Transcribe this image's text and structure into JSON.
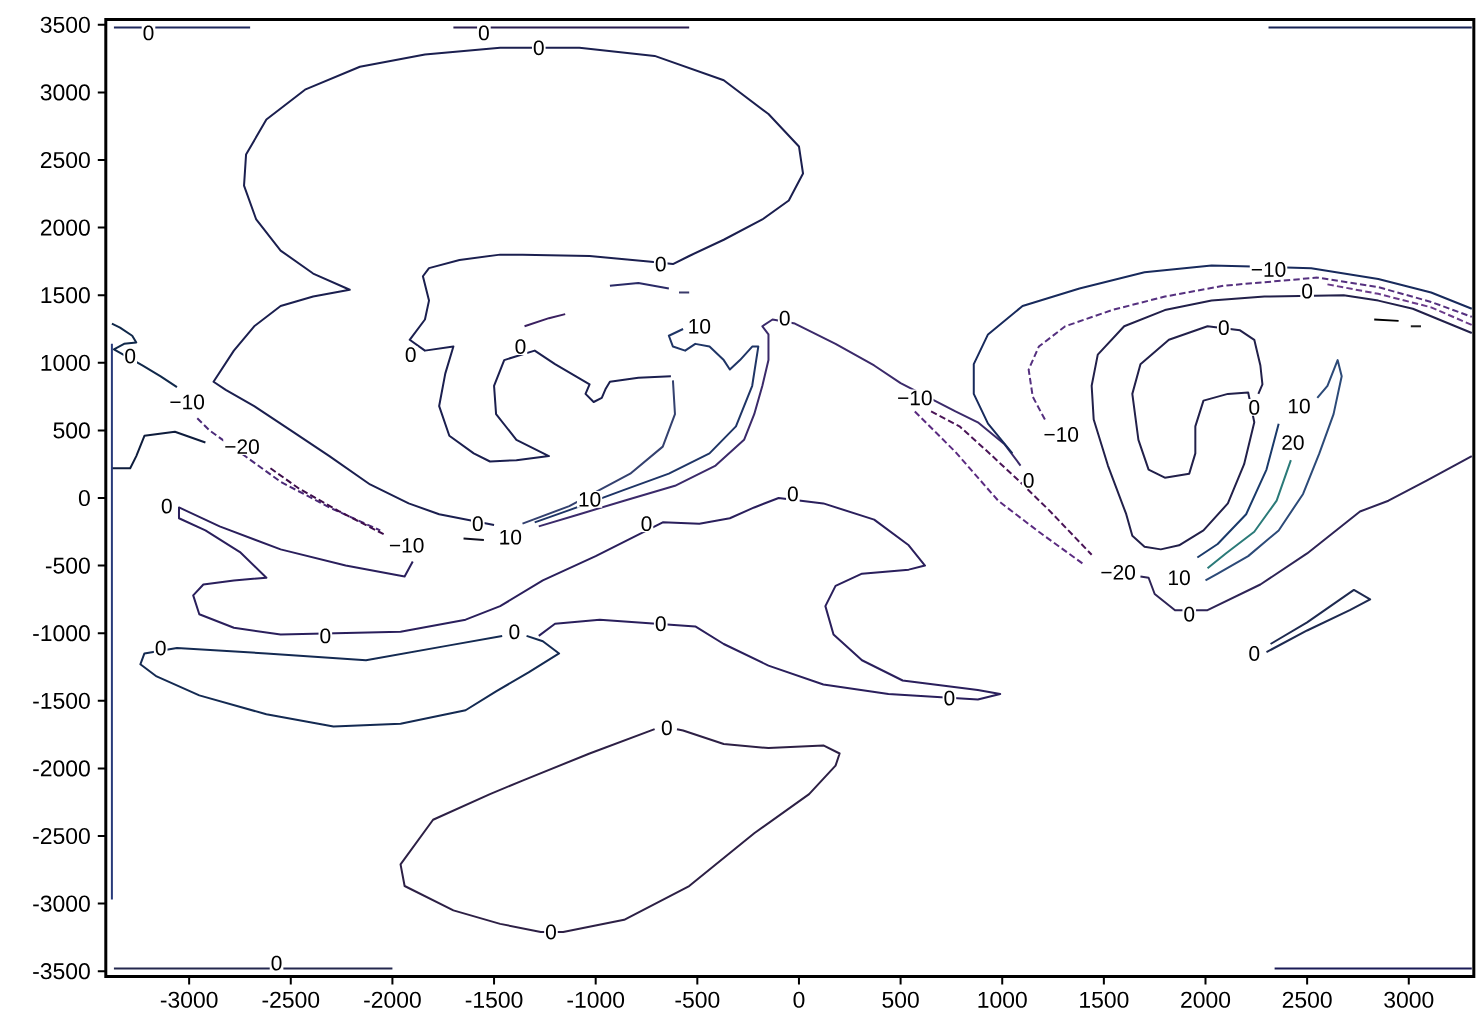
{
  "chart_data": {
    "type": "line",
    "marker": "none",
    "line_style": "solid",
    "xlim": [
      -3410,
      3320
    ],
    "ylim": [
      -3540,
      3540
    ],
    "xticks": [
      -3000,
      -2500,
      -2000,
      -1500,
      -1000,
      -500,
      0,
      500,
      1000,
      1500,
      2000,
      2500,
      3000
    ],
    "yticks": [
      -3500,
      -3000,
      -2500,
      -2000,
      -1500,
      -1000,
      -500,
      0,
      500,
      1000,
      1500,
      2000,
      2500,
      3000,
      3500
    ],
    "series": [
      {
        "color": "#1b1f4f",
        "x": [
          -630,
          -790,
          -930,
          -950,
          -970,
          -1010,
          -1050,
          -1030,
          -1200,
          -1300,
          -1450,
          -1500,
          -1490,
          -1390,
          -1230,
          -1390,
          -1520,
          -1600,
          -1720,
          -1770,
          -1740,
          -1700,
          -1840,
          -1915,
          -1840,
          -1820,
          -1850,
          -1820,
          -1670,
          -1470,
          -1360,
          -1030,
          -740,
          -620,
          -540,
          -370,
          -180,
          -50,
          20,
          0,
          -150,
          -370,
          -710,
          -1080,
          -1470,
          -1840,
          -2160,
          -2430,
          -2620,
          -2720,
          -2730,
          -2670,
          -2550,
          -2390,
          -2210,
          -2390,
          -2550,
          -2680,
          -2780,
          -2880,
          -2820,
          -2680,
          -2500,
          -2310,
          -2110,
          -1920,
          -1770,
          -1500
        ],
        "values": [
          900,
          890,
          860,
          810,
          740,
          710,
          770,
          840,
          990,
          1090,
          1020,
          830,
          620,
          430,
          310,
          280,
          270,
          330,
          460,
          680,
          920,
          1120,
          1090,
          1170,
          1320,
          1460,
          1640,
          1700,
          1760,
          1800,
          1800,
          1790,
          1750,
          1730,
          1790,
          1910,
          2060,
          2200,
          2400,
          2600,
          2840,
          3090,
          3270,
          3330,
          3330,
          3280,
          3190,
          3020,
          2800,
          2540,
          2310,
          2060,
          1830,
          1660,
          1540,
          1490,
          1420,
          1270,
          1090,
          860,
          800,
          680,
          500,
          310,
          100,
          -40,
          -120,
          -200
        ]
      },
      {
        "color": "#2a1f5c",
        "x": [
          -1900,
          -1940,
          -2230,
          -2550,
          -2850,
          -3050,
          -3050,
          -2920,
          -2750,
          -2620,
          -2780,
          -2930,
          -2980,
          -2950,
          -2780,
          -2550,
          -1960,
          -1640,
          -1470,
          -1260,
          -1000,
          -670,
          -490,
          -340,
          -220,
          -100,
          120,
          370,
          540,
          620,
          540,
          310,
          180,
          130,
          170,
          310,
          510,
          880,
          990,
          880,
          440,
          120,
          -150,
          -370,
          -510,
          -980,
          -1200,
          -1280
        ],
        "values": [
          -470,
          -580,
          -500,
          -380,
          -210,
          -70,
          -150,
          -240,
          -400,
          -590,
          -610,
          -640,
          -720,
          -860,
          -960,
          -1010,
          -990,
          -900,
          -800,
          -610,
          -430,
          -180,
          -190,
          -150,
          -70,
          0,
          -40,
          -160,
          -350,
          -500,
          -530,
          -560,
          -650,
          -800,
          -1010,
          -1200,
          -1350,
          -1420,
          -1450,
          -1490,
          -1450,
          -1380,
          -1240,
          -1080,
          -950,
          -900,
          -930,
          -1020
        ]
      },
      {
        "color": "#142a52",
        "x": [
          -1460,
          -1720,
          -2130,
          -2620,
          -3060,
          -3220,
          -3240,
          -3160,
          -2950,
          -2620,
          -2290,
          -1960,
          -1640,
          -1490,
          -1330,
          -1180,
          -1260,
          -1340
        ],
        "values": [
          -1020,
          -1090,
          -1200,
          -1150,
          -1110,
          -1150,
          -1230,
          -1320,
          -1460,
          -1600,
          -1690,
          -1670,
          -1570,
          -1430,
          -1290,
          -1150,
          -1060,
          -1020
        ]
      },
      {
        "color": "#2d2045",
        "x": [
          -710,
          -1030,
          -1360,
          -1520,
          -1800,
          -1960,
          -1940,
          -1700,
          -1470,
          -1270,
          -1160,
          -860,
          -540,
          -220,
          50,
          180,
          200,
          120,
          -150,
          -370,
          -570,
          -600
        ],
        "values": [
          -1710,
          -1890,
          -2090,
          -2190,
          -2380,
          -2710,
          -2870,
          -3050,
          -3150,
          -3210,
          -3210,
          -3120,
          -2870,
          -2480,
          -2190,
          -1980,
          -1890,
          -1830,
          -1850,
          -1820,
          -1720,
          -1710
        ]
      },
      {
        "color": "#1f3566",
        "x": [
          -570,
          -640,
          -620,
          -560,
          -510,
          -440,
          -370,
          -340,
          -290,
          -230,
          -200,
          -230,
          -310,
          -440,
          -640,
          -860,
          -1130,
          -1300
        ],
        "values": [
          1250,
          1200,
          1120,
          1090,
          1140,
          1120,
          1020,
          950,
          1020,
          1120,
          1120,
          830,
          530,
          330,
          180,
          60,
          -90,
          -180
        ]
      },
      {
        "color": "#34416f",
        "x": [
          -620,
          -610,
          -670,
          -830,
          -1130,
          -1360
        ],
        "values": [
          870,
          620,
          380,
          180,
          -60,
          -190
        ]
      },
      {
        "color": "#3b2a6a",
        "x": [
          1090,
          1010,
          880,
          770,
          500,
          370,
          180,
          -20,
          -130,
          -180,
          -150,
          -150,
          -180,
          -220,
          -270,
          -410,
          -610,
          -860,
          -1080,
          -1280
        ],
        "values": [
          240,
          400,
          560,
          640,
          850,
          980,
          1140,
          1290,
          1320,
          1270,
          1210,
          1020,
          830,
          620,
          430,
          240,
          90,
          -20,
          -120,
          -210
        ]
      },
      {
        "color": "#4b2a78",
        "line_style": "dashed",
        "x": [
          -2960,
          -2900,
          -2550,
          -2310,
          -2060
        ],
        "values": [
          590,
          500,
          120,
          -70,
          -240
        ]
      },
      {
        "color": "#3d0d4a",
        "line_style": "dashed",
        "x": [
          -2600,
          -2460,
          -2260,
          -2040
        ],
        "values": [
          220,
          70,
          -100,
          -270
        ]
      },
      {
        "color": "#10284a",
        "x": [
          -3380,
          -3340,
          -3280,
          -3260,
          -3320,
          -3370,
          -3230,
          -3140,
          -3060
        ],
        "values": [
          1290,
          1260,
          1200,
          1150,
          1140,
          1100,
          980,
          900,
          820
        ]
      },
      {
        "color": "#0e1c3c",
        "x": [
          -3380,
          -3290,
          -3260,
          -3220,
          -3070,
          -2920
        ],
        "values": [
          220,
          220,
          310,
          460,
          490,
          410
        ]
      },
      {
        "color": "#283a7a",
        "x": [
          -3380,
          -3380
        ],
        "values": [
          1140,
          -2970
        ]
      },
      {
        "color": "#202a5e",
        "x": [
          -3370,
          -2700
        ],
        "values": [
          3480,
          3480
        ]
      },
      {
        "color": "#2a1e50",
        "x": [
          -1700,
          -540
        ],
        "values": [
          3480,
          3480
        ]
      },
      {
        "color": "#182455",
        "x": [
          2310,
          3310
        ],
        "values": [
          3480,
          3480
        ]
      },
      {
        "color": "#24284f",
        "x": [
          -3370,
          -2000
        ],
        "values": [
          -3480,
          -3480
        ]
      },
      {
        "color": "#1a1b57",
        "x": [
          2340,
          3310
        ],
        "values": [
          -3480,
          -3480
        ]
      },
      {
        "color": "#2a2a66",
        "x": [
          -930,
          -790,
          -640
        ],
        "values": [
          1570,
          1590,
          1550
        ]
      },
      {
        "color": "#3a2060",
        "x": [
          -1350,
          -1230,
          -1150
        ],
        "values": [
          1270,
          1330,
          1360
        ]
      },
      {
        "color": "#101020",
        "x": [
          -1650,
          -1550
        ],
        "values": [
          -300,
          -310
        ]
      },
      {
        "color": "#182a5c",
        "x": [
          1050,
          930,
          860,
          860,
          930,
          1100,
          1380,
          1700,
          2030,
          2520,
          2850,
          3110,
          3310
        ],
        "values": [
          330,
          550,
          770,
          990,
          1210,
          1420,
          1550,
          1670,
          1720,
          1700,
          1620,
          1520,
          1400
        ]
      },
      {
        "color": "#55307f",
        "line_style": "dashed",
        "x": [
          1210,
          1150,
          1130,
          1180,
          1310,
          1540,
          1800,
          2090,
          2550,
          2850,
          3110,
          3310
        ],
        "values": [
          580,
          750,
          950,
          1120,
          1270,
          1390,
          1490,
          1570,
          1630,
          1560,
          1450,
          1340
        ]
      },
      {
        "color": "#6a3a8a",
        "line_style": "dashed",
        "x": [
          2600,
          2850,
          3110,
          3310
        ],
        "values": [
          1580,
          1510,
          1410,
          1280
        ]
      },
      {
        "color": "#22204a",
        "x": [
          3310,
          3020,
          2850,
          2680,
          2290,
          2030,
          1800,
          1600,
          1470,
          1440,
          1450,
          1520,
          1610,
          1640,
          1700,
          1780,
          1870,
          1990,
          2110,
          2190,
          2240,
          2210,
          2110,
          1990,
          1950,
          1950,
          1920,
          1800,
          1720,
          1670,
          1640,
          1680,
          1820,
          2010,
          2170,
          2240,
          2270,
          2280,
          2260
        ],
        "values": [
          1220,
          1400,
          1460,
          1500,
          1490,
          1460,
          1390,
          1270,
          1060,
          830,
          580,
          240,
          -120,
          -280,
          -360,
          -380,
          -350,
          -240,
          -40,
          250,
          560,
          780,
          770,
          720,
          530,
          330,
          180,
          150,
          210,
          430,
          770,
          990,
          1170,
          1270,
          1240,
          1170,
          980,
          840,
          770
        ]
      },
      {
        "color": "#1a3a6a",
        "x": [
          2360,
          2300,
          2200,
          2060,
          1960
        ],
        "values": [
          550,
          210,
          -120,
          -340,
          -440
        ]
      },
      {
        "color": "#2a7a78",
        "x": [
          2420,
          2350,
          2240,
          2100,
          2010
        ],
        "values": [
          280,
          -20,
          -250,
          -410,
          -520
        ]
      },
      {
        "color": "#2c4a78",
        "x": [
          2550,
          2600,
          2650,
          2670,
          2630,
          2560,
          2480,
          2360,
          2210,
          2060,
          2000
        ],
        "values": [
          740,
          830,
          1020,
          900,
          620,
          330,
          30,
          -240,
          -430,
          -560,
          -610
        ]
      },
      {
        "color": "#2e2456",
        "x": [
          3310,
          3090,
          2900,
          2760,
          2500,
          2270,
          2010,
          1850,
          1750,
          1720,
          1680
        ],
        "values": [
          310,
          130,
          -20,
          -100,
          -410,
          -640,
          -830,
          -830,
          -710,
          -590,
          -580
        ]
      },
      {
        "color": "#5a2a80",
        "line_style": "dashed",
        "x": [
          570,
          770,
          980,
          1180,
          1400
        ],
        "values": [
          640,
          340,
          -20,
          -250,
          -490
        ]
      },
      {
        "color": "#4a1456",
        "line_style": "dashed",
        "x": [
          650,
          790,
          930,
          1080,
          1230,
          1440
        ],
        "values": [
          640,
          530,
          340,
          130,
          -90,
          -420
        ]
      },
      {
        "color": "#1e2a50",
        "x": [
          2320,
          2500,
          2730,
          2810,
          2710,
          2500,
          2300
        ],
        "values": [
          -1080,
          -920,
          -680,
          -750,
          -830,
          -980,
          -1140
        ]
      },
      {
        "color": "#000000",
        "x": [
          2830,
          2950
        ],
        "values": [
          1320,
          1310
        ]
      },
      {
        "color": "#202020",
        "x": [
          3010,
          3060
        ],
        "values": [
          1270,
          1270
        ]
      },
      {
        "color": "#3a3a6a",
        "x": [
          -590,
          -540
        ],
        "values": [
          1520,
          1520
        ]
      }
    ],
    "annotations": [
      {
        "text": "0",
        "x": -1280,
        "y": 3330
      },
      {
        "text": "0",
        "x": -680,
        "y": 1730
      },
      {
        "text": "0",
        "x": -1370,
        "y": 1120
      },
      {
        "text": "0",
        "x": -1910,
        "y": 1060
      },
      {
        "text": "0",
        "x": -1580,
        "y": -190
      },
      {
        "text": "0",
        "x": -3110,
        "y": -60
      },
      {
        "text": "0",
        "x": -2330,
        "y": -1020
      },
      {
        "text": "0",
        "x": -750,
        "y": -190
      },
      {
        "text": "0",
        "x": -30,
        "y": 30
      },
      {
        "text": "0",
        "x": 740,
        "y": -1480
      },
      {
        "text": "0",
        "x": -680,
        "y": -930
      },
      {
        "text": "0",
        "x": -1400,
        "y": -990
      },
      {
        "text": "0",
        "x": -3140,
        "y": -1110
      },
      {
        "text": "0",
        "x": -650,
        "y": -1700
      },
      {
        "text": "0",
        "x": -1220,
        "y": -3210
      },
      {
        "text": "10",
        "x": -490,
        "y": 1270
      },
      {
        "text": "10",
        "x": -1030,
        "y": -10
      },
      {
        "text": "10",
        "x": -1420,
        "y": -290
      },
      {
        "text": "0",
        "x": -70,
        "y": 1330
      },
      {
        "text": "−10",
        "x": 570,
        "y": 740
      },
      {
        "text": "−10",
        "x": -3010,
        "y": 710
      },
      {
        "text": "−20",
        "x": -2740,
        "y": 380
      },
      {
        "text": "−10",
        "x": -1930,
        "y": -350
      },
      {
        "text": "0",
        "x": -3290,
        "y": 1050
      },
      {
        "text": "0",
        "x": -3200,
        "y": 3440
      },
      {
        "text": "0",
        "x": -1550,
        "y": 3440
      },
      {
        "text": "0",
        "x": -2570,
        "y": -3440
      },
      {
        "text": "0",
        "x": 1130,
        "y": 130
      },
      {
        "text": "−10",
        "x": 2310,
        "y": 1690
      },
      {
        "text": "−10",
        "x": 1290,
        "y": 470
      },
      {
        "text": "0",
        "x": 2500,
        "y": 1530
      },
      {
        "text": "0",
        "x": 2240,
        "y": 670
      },
      {
        "text": "0",
        "x": 2090,
        "y": 1260
      },
      {
        "text": "10",
        "x": 2460,
        "y": 680
      },
      {
        "text": "20",
        "x": 2430,
        "y": 410
      },
      {
        "text": "10",
        "x": 1870,
        "y": -590
      },
      {
        "text": "0",
        "x": 1920,
        "y": -860
      },
      {
        "text": "−20",
        "x": 1570,
        "y": -550
      },
      {
        "text": "0",
        "x": 2240,
        "y": -1150
      }
    ]
  }
}
